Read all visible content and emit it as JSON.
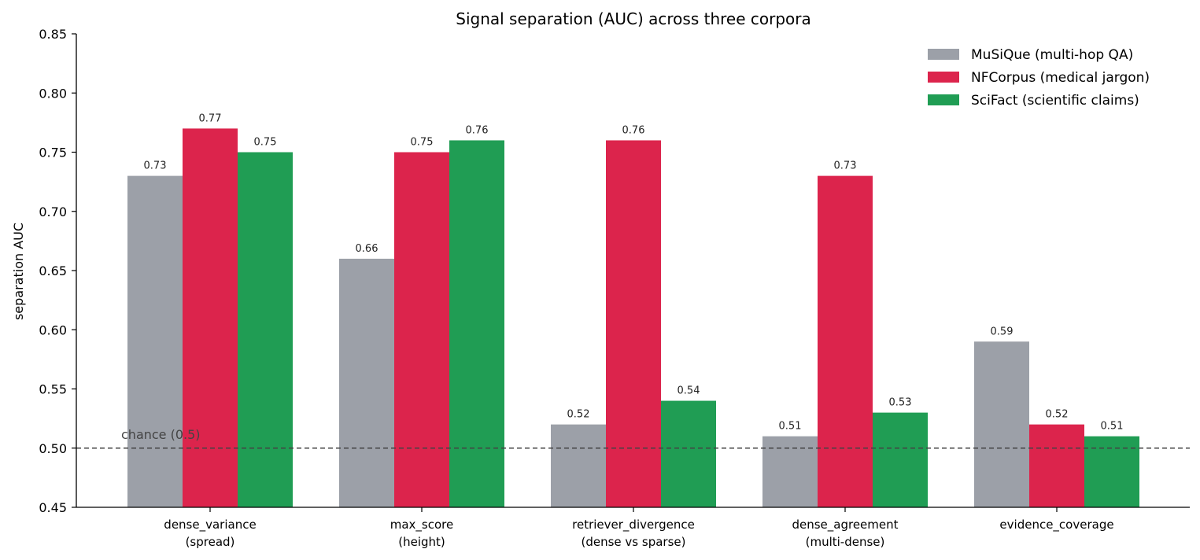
{
  "chart_data": {
    "type": "bar",
    "title": "Signal separation (AUC) across three corpora",
    "ylabel": "separation AUC",
    "xlabel": "",
    "ylim": [
      0.45,
      0.85
    ],
    "yticks": [
      "0.45",
      "0.50",
      "0.55",
      "0.60",
      "0.65",
      "0.70",
      "0.75",
      "0.80",
      "0.85"
    ],
    "ytick_values": [
      0.45,
      0.5,
      0.55,
      0.6,
      0.65,
      0.7,
      0.75,
      0.8,
      0.85
    ],
    "categories": [
      [
        "dense_variance",
        "(spread)"
      ],
      [
        "max_score",
        "(height)"
      ],
      [
        "retriever_divergence",
        "(dense vs sparse)"
      ],
      [
        "dense_agreement",
        "(multi-dense)"
      ],
      [
        "evidence_coverage"
      ]
    ],
    "series": [
      {
        "name": "MuSiQue (multi-hop QA)",
        "color": "#9ca0a8",
        "values": [
          0.73,
          0.66,
          0.52,
          0.51,
          0.59
        ],
        "labels": [
          "0.73",
          "0.66",
          "0.52",
          "0.51",
          "0.59"
        ]
      },
      {
        "name": "NFCorpus (medical jargon)",
        "color": "#dc244c",
        "values": [
          0.77,
          0.75,
          0.76,
          0.73,
          0.52
        ],
        "labels": [
          "0.77",
          "0.75",
          "0.76",
          "0.73",
          "0.52"
        ]
      },
      {
        "name": "SciFact (scientific claims)",
        "color": "#209d54",
        "values": [
          0.75,
          0.76,
          0.54,
          0.53,
          0.51
        ],
        "labels": [
          "0.75",
          "0.76",
          "0.54",
          "0.53",
          "0.51"
        ]
      }
    ],
    "reference_line": {
      "value": 0.5,
      "label": "chance (0.5)",
      "style": "dashed"
    },
    "legend_position": "top-right",
    "grid": false
  }
}
